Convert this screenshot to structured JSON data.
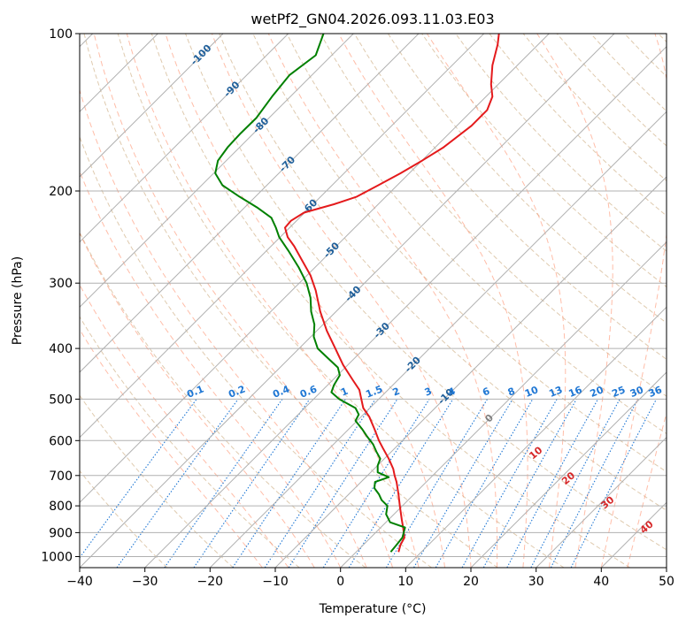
{
  "chart_data": {
    "type": "skew-t",
    "title": "wetPf2_GN04.2026.093.11.03.E03",
    "xlabel": "Temperature (°C)",
    "ylabel": "Pressure (hPa)",
    "xlim": [
      -40,
      50
    ],
    "ylim_hpa": [
      1050,
      100
    ],
    "x_ticks": [
      -40,
      -30,
      -20,
      -10,
      0,
      10,
      20,
      30,
      40,
      50
    ],
    "y_ticks": [
      100,
      200,
      300,
      400,
      500,
      600,
      700,
      800,
      900,
      1000
    ],
    "colors": {
      "temperature": "#e41a1c",
      "dewpoint": "#008000",
      "isotherm": "#b0b0b0",
      "isobar": "#b0b0b0",
      "dry_adiabat": "#d2b48c",
      "moist_adiabat": "#ff9a7a",
      "mixing_ratio": "#1f77d4",
      "isotherm_label": "#1f5f9a",
      "dry_label": "#d62728"
    },
    "series": [
      {
        "name": "temperature",
        "points": [
          [
            980,
            8.9
          ],
          [
            950,
            9.2
          ],
          [
            920,
            9.8
          ],
          [
            880,
            9.6
          ],
          [
            850,
            9.4
          ],
          [
            800,
            9.1
          ],
          [
            760,
            8.9
          ],
          [
            720,
            8.6
          ],
          [
            700,
            8.3
          ],
          [
            680,
            8.1
          ],
          [
            650,
            7.4
          ],
          [
            620,
            6.5
          ],
          [
            600,
            5.9
          ],
          [
            570,
            5.2
          ],
          [
            540,
            4.4
          ],
          [
            520,
            3.5
          ],
          [
            500,
            3.2
          ],
          [
            480,
            2.9
          ],
          [
            460,
            1.9
          ],
          [
            430,
            0.4
          ],
          [
            400,
            -0.8
          ],
          [
            370,
            -2.1
          ],
          [
            340,
            -3.1
          ],
          [
            310,
            -3.8
          ],
          [
            290,
            -4.6
          ],
          [
            270,
            -6.0
          ],
          [
            255,
            -7.1
          ],
          [
            245,
            -8.1
          ],
          [
            235,
            -8.5
          ],
          [
            228,
            -7.6
          ],
          [
            220,
            -5.6
          ],
          [
            212,
            -1.0
          ],
          [
            205,
            2.5
          ],
          [
            195,
            5.8
          ],
          [
            185,
            9.2
          ],
          [
            175,
            12.5
          ],
          [
            165,
            15.8
          ],
          [
            150,
            20.1
          ],
          [
            140,
            22.5
          ],
          [
            132,
            23.3
          ],
          [
            125,
            23.1
          ],
          [
            115,
            23.3
          ],
          [
            105,
            24.1
          ],
          [
            100,
            24.3
          ]
        ]
      },
      {
        "name": "dewpoint",
        "points": [
          [
            980,
            7.7
          ],
          [
            950,
            8.6
          ],
          [
            920,
            9.5
          ],
          [
            880,
            9.9
          ],
          [
            860,
            7.6
          ],
          [
            830,
            7.0
          ],
          [
            800,
            7.2
          ],
          [
            780,
            6.3
          ],
          [
            760,
            5.9
          ],
          [
            740,
            5.2
          ],
          [
            720,
            5.3
          ],
          [
            705,
            7.4
          ],
          [
            690,
            5.7
          ],
          [
            670,
            5.7
          ],
          [
            650,
            6.1
          ],
          [
            630,
            5.5
          ],
          [
            610,
            5.0
          ],
          [
            590,
            4.1
          ],
          [
            570,
            3.3
          ],
          [
            550,
            2.3
          ],
          [
            535,
            2.8
          ],
          [
            520,
            2.3
          ],
          [
            500,
            -0.2
          ],
          [
            485,
            -1.4
          ],
          [
            470,
            -1.0
          ],
          [
            450,
            -0.1
          ],
          [
            435,
            -0.4
          ],
          [
            420,
            -1.7
          ],
          [
            400,
            -3.5
          ],
          [
            380,
            -4.1
          ],
          [
            360,
            -4.0
          ],
          [
            340,
            -4.5
          ],
          [
            320,
            -4.6
          ],
          [
            300,
            -5.2
          ],
          [
            280,
            -6.4
          ],
          [
            260,
            -8.0
          ],
          [
            245,
            -9.4
          ],
          [
            235,
            -9.9
          ],
          [
            225,
            -10.6
          ],
          [
            215,
            -12.8
          ],
          [
            205,
            -15.5
          ],
          [
            195,
            -18.1
          ],
          [
            185,
            -19.2
          ],
          [
            175,
            -18.8
          ],
          [
            165,
            -17.3
          ],
          [
            155,
            -15.3
          ],
          [
            145,
            -12.9
          ],
          [
            132,
            -10.5
          ],
          [
            120,
            -7.8
          ],
          [
            110,
            -3.8
          ],
          [
            100,
            -2.6
          ]
        ]
      }
    ],
    "isotherm_labels": [
      "-100",
      "-90",
      "-80",
      "-70",
      "-60",
      "-50",
      "-40",
      "-30",
      "-20",
      "-10",
      "0"
    ],
    "dry_adiabat_labels": [
      "10",
      "20",
      "30",
      "40"
    ],
    "mixing_ratio_labels": [
      "0.1",
      "0.2",
      "0.4",
      "0.6",
      "1",
      "1.5",
      "2",
      "3",
      "4",
      "6",
      "8",
      "10",
      "13",
      "16",
      "20",
      "25",
      "30",
      "36"
    ]
  }
}
